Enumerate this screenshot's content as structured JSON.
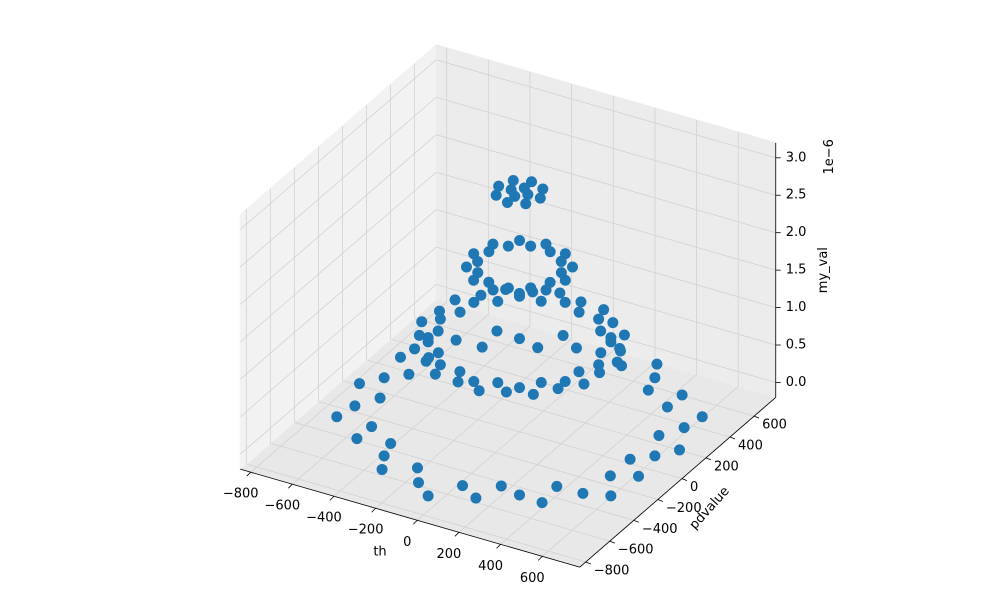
{
  "chart_data": {
    "type": "scatter3d",
    "x_label": "th",
    "y_label": "pdvalue",
    "z_label": "my_val",
    "z_offset_label": "1e−6",
    "xlim": [
      -850,
      780
    ],
    "ylim": [
      -850,
      780
    ],
    "zlim": [
      -0.2,
      3.2
    ],
    "xticks": [
      {
        "value": -800,
        "label": "−800"
      },
      {
        "value": -600,
        "label": "−600"
      },
      {
        "value": -400,
        "label": "−400"
      },
      {
        "value": -200,
        "label": "−200"
      },
      0,
      200,
      400,
      600
    ],
    "yticks": [
      {
        "value": -800,
        "label": "−800"
      },
      {
        "value": -600,
        "label": "−600"
      },
      {
        "value": -400,
        "label": "−400"
      },
      {
        "value": -200,
        "label": "−200"
      },
      0,
      200,
      400,
      600
    ],
    "zticks": [
      {
        "value": 0,
        "label": "0.0"
      },
      0.5,
      {
        "value": 1,
        "label": "1.0"
      },
      1.5,
      {
        "value": 2,
        "label": "2.0"
      },
      2.5,
      {
        "value": 3,
        "label": "3.0"
      }
    ],
    "grid": true,
    "series": [
      {
        "color": "#1f77b4",
        "x": [
          650,
          714,
          580,
          638,
          658,
          492,
          495,
          353,
          325,
          276,
          155,
          90,
          0,
          -81,
          -181,
          -222,
          -325,
          -438,
          -424,
          -547,
          -658,
          -573,
          -676,
          -575,
          -650,
          -714,
          -580,
          -638,
          -658,
          -492,
          -495,
          -353,
          -325,
          -276,
          -155,
          -90,
          0,
          81,
          181,
          222,
          325,
          438,
          424,
          547,
          658,
          573,
          676,
          575,
          380,
          436,
          338,
          388,
          329,
          349,
          247,
          256,
          190,
          169,
          91,
          55,
          0,
          -58,
          -91,
          -161,
          -190,
          -268,
          -247,
          -333,
          -329,
          -407,
          -338,
          -416,
          -380,
          -436,
          -338,
          -388,
          -329,
          -349,
          -247,
          -256,
          -190,
          -169,
          -91,
          -55,
          0,
          58,
          91,
          161,
          190,
          268,
          247,
          333,
          329,
          407,
          338,
          416,
          220,
          174,
          191,
          127,
          110,
          47,
          0,
          -47,
          -110,
          -127,
          -191,
          -174,
          -220,
          -174,
          -191,
          -127,
          -110,
          -47,
          0,
          47,
          110,
          127,
          191,
          174,
          100,
          71,
          0,
          -71,
          -100,
          -71,
          0,
          71,
          40,
          0,
          -40,
          0
        ],
        "y": [
          0,
          94,
          155,
          264,
          380,
          378,
          495,
          460,
          563,
          665,
          580,
          684,
          760,
          614,
          676,
          536,
          563,
          571,
          424,
          420,
          380,
          237,
          181,
          76,
          0,
          -94,
          -155,
          -264,
          -380,
          -378,
          -495,
          -460,
          -563,
          -665,
          -580,
          -684,
          -760,
          -614,
          -676,
          -536,
          -563,
          -571,
          -424,
          -420,
          -380,
          -237,
          -181,
          -76,
          0,
          58,
          91,
          161,
          190,
          268,
          247,
          333,
          329,
          407,
          338,
          416,
          380,
          436,
          338,
          388,
          329,
          349,
          247,
          256,
          190,
          169,
          91,
          55,
          0,
          -58,
          -91,
          -161,
          -190,
          -268,
          -247,
          -333,
          -329,
          -407,
          -338,
          -416,
          -380,
          -436,
          -338,
          -388,
          -329,
          -349,
          -247,
          -256,
          -190,
          -169,
          -91,
          -55,
          0,
          47,
          110,
          127,
          191,
          174,
          220,
          174,
          191,
          127,
          110,
          47,
          0,
          -47,
          -110,
          -127,
          -191,
          -174,
          -220,
          -174,
          -191,
          -127,
          -110,
          -47,
          0,
          71,
          100,
          71,
          0,
          -71,
          -100,
          -71,
          0,
          40,
          0,
          -40
        ],
        "z": [
          0,
          0,
          0,
          0,
          0,
          0,
          0,
          0,
          0,
          0,
          0,
          0,
          0,
          0,
          0,
          0,
          0,
          0,
          0,
          0,
          0,
          0,
          0,
          0,
          0,
          0,
          0,
          0,
          0,
          0,
          0,
          0,
          0,
          0,
          0,
          0,
          0,
          0,
          0,
          0,
          0,
          0,
          0,
          0,
          0,
          0,
          0,
          0,
          1,
          1,
          1,
          1,
          1,
          1,
          1,
          1,
          1,
          1,
          1,
          1,
          1,
          1,
          1,
          1,
          1,
          1,
          1,
          1,
          1,
          1,
          1,
          1,
          1,
          1,
          1,
          1,
          1,
          1,
          1,
          1,
          1,
          1,
          1,
          1,
          1,
          1,
          1,
          1,
          1,
          1,
          1,
          1,
          1,
          1,
          1,
          1,
          2,
          2,
          2,
          2,
          2,
          2,
          2,
          2,
          2,
          2,
          2,
          2,
          2,
          2,
          2,
          2,
          2,
          2,
          2,
          2,
          2,
          2,
          2,
          2,
          3,
          3,
          3,
          3,
          3,
          3,
          3,
          3,
          3,
          3,
          3,
          3
        ]
      }
    ]
  }
}
